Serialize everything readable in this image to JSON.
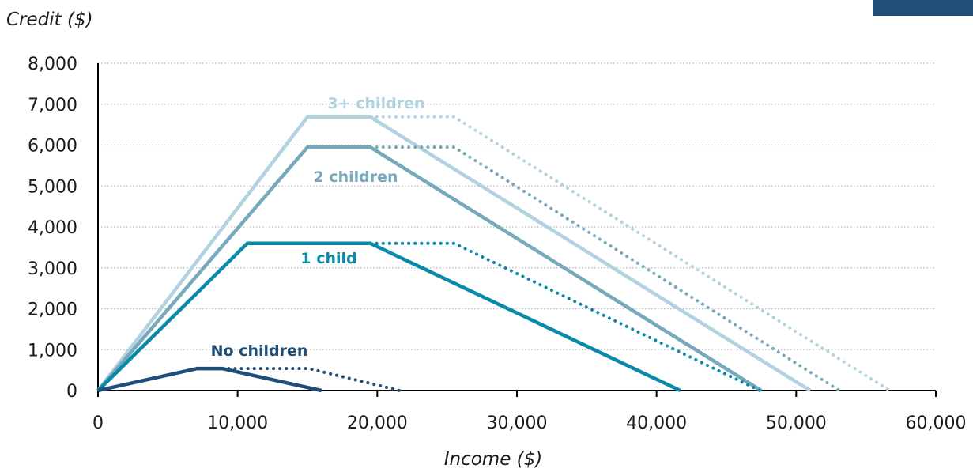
{
  "chart_data": {
    "type": "line",
    "xlabel": "Income ($)",
    "ylabel": "Credit ($)",
    "xlim": [
      0,
      60000
    ],
    "ylim": [
      0,
      8000
    ],
    "x_ticks": [
      "0",
      "10,000",
      "20,000",
      "30,000",
      "40,000",
      "50,000",
      "60,000"
    ],
    "y_ticks": [
      "0",
      "1,000",
      "2,000",
      "3,000",
      "4,000",
      "5,000",
      "6,000",
      "7,000",
      "8,000"
    ],
    "grid": "horizontal dotted",
    "series": [
      {
        "name": "No children",
        "color": "#1f4e79",
        "solid": [
          [
            0,
            0
          ],
          [
            7100,
            540
          ],
          [
            8900,
            540
          ],
          [
            16000,
            0
          ]
        ],
        "dotted": [
          [
            8900,
            540
          ],
          [
            15100,
            540
          ],
          [
            21600,
            0
          ]
        ]
      },
      {
        "name": "1 child",
        "color": "#0a8aa8",
        "solid": [
          [
            0,
            0
          ],
          [
            10700,
            3600
          ],
          [
            19500,
            3600
          ],
          [
            41700,
            0
          ]
        ],
        "dotted": [
          [
            19500,
            3600
          ],
          [
            25500,
            3600
          ],
          [
            47400,
            0
          ]
        ]
      },
      {
        "name": "2 children",
        "color": "#76a9bb",
        "solid": [
          [
            0,
            0
          ],
          [
            15000,
            5950
          ],
          [
            19500,
            5950
          ],
          [
            47500,
            0
          ]
        ],
        "dotted": [
          [
            19500,
            5950
          ],
          [
            25500,
            5950
          ],
          [
            53100,
            0
          ]
        ]
      },
      {
        "name": "3+ children",
        "color": "#b1d2df",
        "solid": [
          [
            0,
            0
          ],
          [
            15000,
            6690
          ],
          [
            19500,
            6690
          ],
          [
            51000,
            0
          ]
        ],
        "dotted": [
          [
            19500,
            6690
          ],
          [
            25500,
            6690
          ],
          [
            56700,
            0
          ]
        ]
      }
    ]
  }
}
